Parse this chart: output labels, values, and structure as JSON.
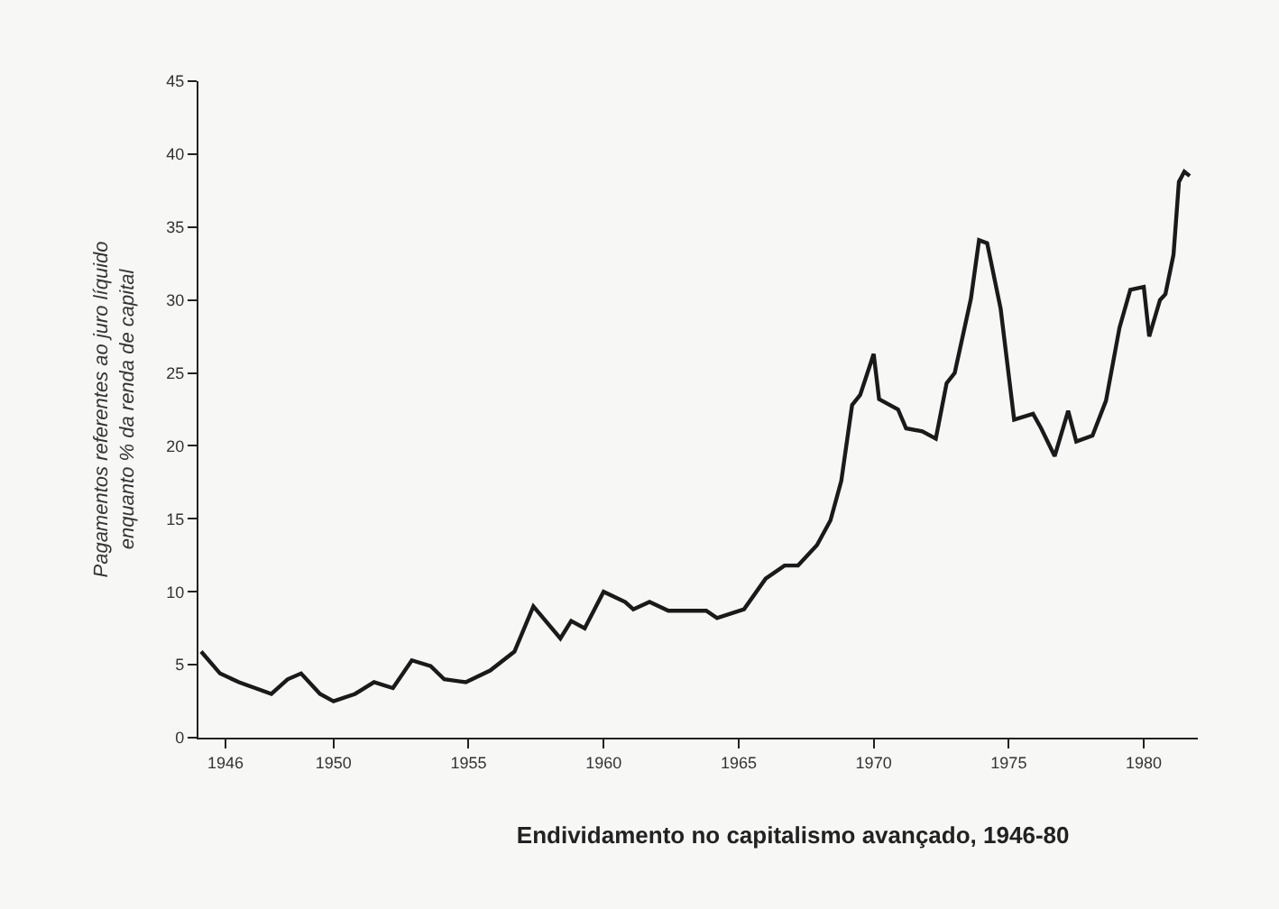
{
  "chart_data": {
    "type": "line",
    "title": "Endividamento no capitalismo avançado, 1946-80",
    "ylabel": "Pagamentos referentes ao juro líquido\nenquanto % da renda de capital",
    "x": [
      1945.1,
      1945.8,
      1946.5,
      1947.1,
      1947.7,
      1948.3,
      1948.8,
      1949.5,
      1950,
      1950.8,
      1951.5,
      1952.2,
      1952.9,
      1953.6,
      1954.1,
      1954.9,
      1955.8,
      1956.7,
      1957.4,
      1958.4,
      1958.8,
      1959.3,
      1960,
      1960.8,
      1961.1,
      1961.7,
      1962.4,
      1963.8,
      1964.2,
      1965.2,
      1966,
      1966.7,
      1967.2,
      1967.9,
      1968.4,
      1968.8,
      1969.2,
      1969.5,
      1970,
      1970.2,
      1970.9,
      1971.2,
      1971.8,
      1972.3,
      1972.7,
      1973,
      1973.6,
      1973.9,
      1974.2,
      1974.7,
      1975.2,
      1975.9,
      1976.2,
      1976.7,
      1977.2,
      1977.5,
      1978.1,
      1978.6,
      1979.1,
      1979.5,
      1980,
      1980.2,
      1980.6,
      1980.8,
      1981.1,
      1981.3,
      1981.5,
      1981.7
    ],
    "series": [
      {
        "color": "#1a1a1a",
        "values": [
          5.9,
          4.4,
          3.8,
          3.4,
          3.0,
          4.0,
          4.4,
          3.0,
          2.5,
          3.0,
          3.8,
          3.4,
          5.3,
          4.9,
          4.0,
          3.8,
          4.6,
          5.9,
          9.0,
          6.8,
          8.0,
          7.5,
          10.0,
          9.3,
          8.8,
          9.3,
          8.7,
          8.7,
          8.2,
          8.8,
          10.9,
          11.8,
          11.8,
          13.2,
          14.9,
          17.6,
          22.8,
          23.5,
          26.3,
          23.2,
          22.5,
          21.2,
          21.0,
          20.5,
          24.3,
          25.0,
          30.1,
          34.1,
          33.9,
          29.4,
          21.8,
          22.2,
          21.2,
          19.3,
          22.4,
          20.3,
          20.7,
          23.1,
          28.1,
          30.7,
          30.9,
          27.5,
          30.0,
          30.4,
          33.1,
          38.1,
          38.8,
          38.5
        ]
      }
    ],
    "xlim": [
      1945,
      1982
    ],
    "xticks": [
      1946,
      1950,
      1955,
      1960,
      1965,
      1970,
      1975,
      1980
    ],
    "ylim": [
      0,
      45
    ],
    "yticks": [
      0,
      5,
      10,
      15,
      20,
      25,
      30,
      35,
      40,
      45
    ],
    "grid": false,
    "marker": "none",
    "line_style": "solid"
  }
}
